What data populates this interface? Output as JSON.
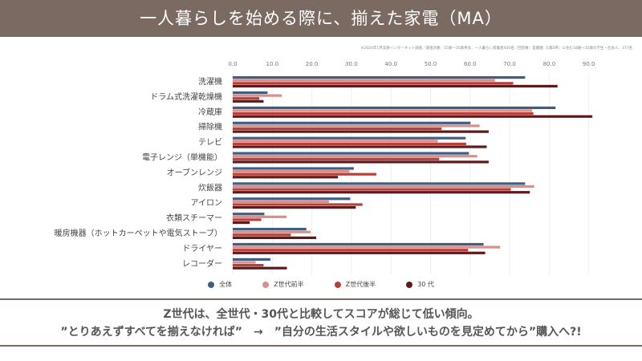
{
  "header": {
    "title": "一人暮らしを始める際に、揃えた家電（MA）"
  },
  "note": "※2024年1月実施インターネット調査／調査対象：15歳〜35歳男女、一人暮らし経験者400名／回答数：首都圏（1都3県）に住む18歳〜35歳の学生・社会人、377名",
  "chart_data": {
    "type": "bar",
    "orientation": "horizontal",
    "title": "一人暮らしを始める際に、揃えた家電（MA）",
    "xlim": [
      0,
      90
    ],
    "xticks": [
      "0.0",
      "10.0",
      "20.0",
      "30.0",
      "40.0",
      "50.0",
      "60.0",
      "70.0",
      "80.0",
      "90.0"
    ],
    "categories": [
      "洗濯機",
      "ドラム式洗濯乾燥機",
      "冷蔵庫",
      "掃除機",
      "テレビ",
      "電子レンジ（単機能）",
      "オーブンレンジ",
      "炊飯器",
      "アイロン",
      "衣類スチーマー",
      "暖房機器（ホットカーペットや電気ストーブ）",
      "ドライヤー",
      "レコーダー"
    ],
    "series": [
      {
        "name": "全体",
        "color": "#3f5e82",
        "values": [
          73.9,
          8.8,
          81.6,
          60.1,
          58.9,
          59.7,
          30.6,
          73.9,
          29.7,
          8.0,
          18.6,
          63.4,
          9.5
        ]
      },
      {
        "name": "Z世代前半",
        "color": "#d98f8a",
        "values": [
          66.3,
          12.4,
          75.7,
          62.4,
          51.8,
          61.8,
          29.5,
          76.2,
          24.3,
          13.6,
          19.7,
          67.6,
          5.8
        ]
      },
      {
        "name": "Z世代後半",
        "color": "#b8403b",
        "values": [
          70.9,
          6.7,
          76.0,
          52.8,
          59.0,
          52.2,
          36.3,
          70.3,
          32.8,
          7.2,
          14.7,
          59.5,
          7.8
        ]
      },
      {
        "name": "30 代",
        "color": "#5e1a1a",
        "values": [
          82.1,
          7.8,
          90.9,
          64.7,
          64.2,
          64.7,
          26.6,
          75.1,
          31.1,
          4.3,
          21.1,
          63.8,
          13.7
        ]
      }
    ],
    "legend_position": "bottom",
    "grid": true
  },
  "conclusion": {
    "line1": "Z世代は、全世代・30代と比較してスコアが総じて低い傾向。",
    "line2": "”とりあえずすべてを揃えなければ”　→　”自分の生活スタイルや欲しいものを見定めてから”購入へ?!"
  }
}
